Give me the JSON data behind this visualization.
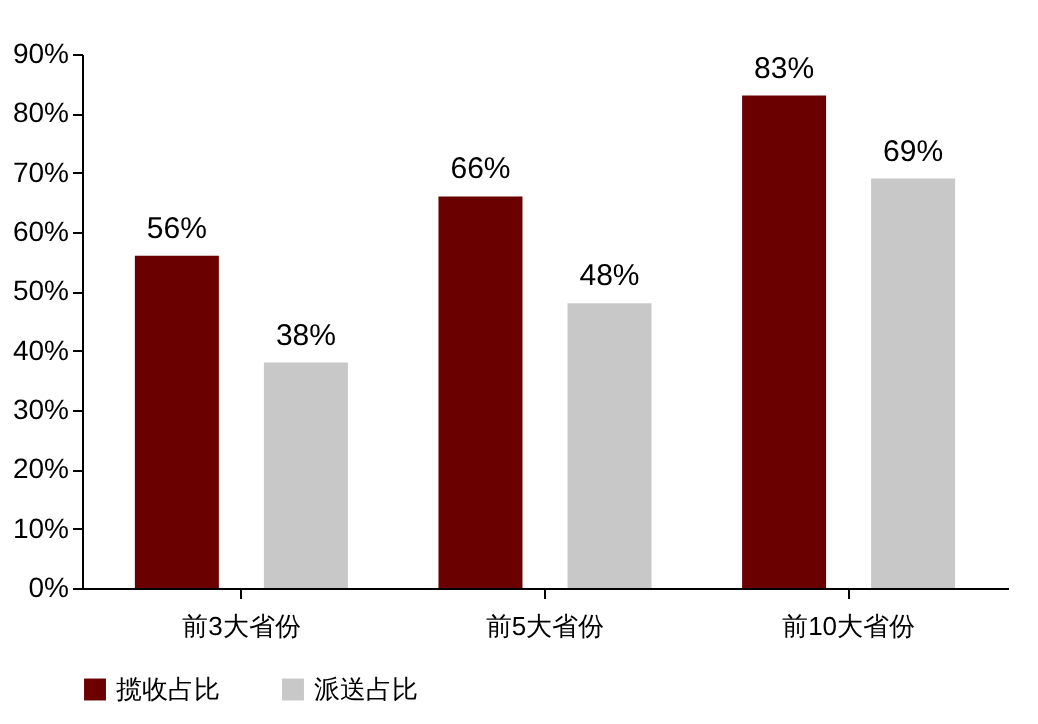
{
  "chart_data": {
    "type": "bar",
    "categories": [
      "前3大省份",
      "前5大省份",
      "前10大省份"
    ],
    "series": [
      {
        "name": "揽收占比",
        "color": "#6b0000",
        "values": [
          56,
          66,
          83
        ],
        "value_labels": [
          "56%",
          "66%",
          "83%"
        ]
      },
      {
        "name": "派送占比",
        "color": "#c8c8c8",
        "values": [
          38,
          48,
          69
        ],
        "value_labels": [
          "38%",
          "48%",
          "69%"
        ]
      }
    ],
    "ylim": [
      0,
      90
    ],
    "yticks": [
      {
        "value": 0,
        "label": "0%"
      },
      {
        "value": 10,
        "label": "10%"
      },
      {
        "value": 20,
        "label": "20%"
      },
      {
        "value": 30,
        "label": "30%"
      },
      {
        "value": 40,
        "label": "40%"
      },
      {
        "value": 50,
        "label": "50%"
      },
      {
        "value": 60,
        "label": "60%"
      },
      {
        "value": 70,
        "label": "70%"
      },
      {
        "value": 80,
        "label": "80%"
      },
      {
        "value": 90,
        "label": "90%"
      }
    ],
    "grid": false,
    "legend": "bottom"
  }
}
